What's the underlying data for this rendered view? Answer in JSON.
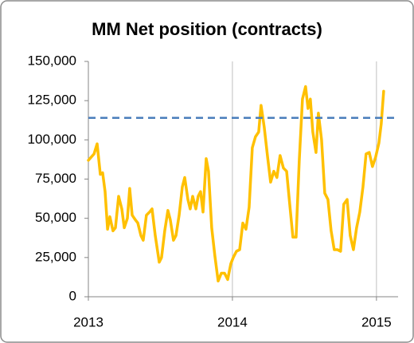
{
  "chart_data": {
    "type": "line",
    "title": "MM Net position (contracts)",
    "x": [
      2013.0,
      2013.039,
      2013.061,
      2013.083,
      2013.099,
      2013.116,
      2013.133,
      2013.149,
      2013.171,
      2013.188,
      2013.21,
      2013.232,
      2013.249,
      2013.271,
      2013.287,
      2013.304,
      2013.326,
      2013.343,
      2013.365,
      2013.381,
      2013.403,
      2013.425,
      2013.442,
      2013.464,
      2013.492,
      2013.508,
      2013.53,
      2013.552,
      2013.569,
      2013.591,
      2013.608,
      2013.63,
      2013.652,
      2013.669,
      2013.691,
      2013.707,
      2013.724,
      2013.746,
      2013.762,
      2013.779,
      2013.796,
      2013.818,
      2013.834,
      2013.856,
      2013.878,
      2013.901,
      2013.923,
      2013.945,
      2013.967,
      2013.989,
      2014.006,
      2014.028,
      2014.05,
      2014.072,
      2014.094,
      2014.116,
      2014.138,
      2014.16,
      2014.182,
      2014.199,
      2014.221,
      2014.243,
      2014.265,
      2014.287,
      2014.309,
      2014.331,
      2014.354,
      2014.376,
      2014.398,
      2014.42,
      2014.442,
      2014.464,
      2014.486,
      2014.508,
      2014.525,
      2014.541,
      2014.558,
      2014.58,
      2014.597,
      2014.619,
      2014.641,
      2014.663,
      2014.685,
      2014.707,
      2014.729,
      2014.751,
      2014.773,
      2014.796,
      2014.818,
      2014.84,
      2014.862,
      2014.884,
      2014.906,
      2014.928,
      2014.95,
      2014.972,
      2014.994,
      2015.017,
      2015.033,
      2015.05
    ],
    "series": [
      {
        "color": "#ffc000",
        "values": [
          87000,
          91000,
          97500,
          78000,
          79000,
          67000,
          43000,
          51000,
          42000,
          44000,
          64000,
          56000,
          44000,
          50000,
          69000,
          52000,
          49000,
          47000,
          39000,
          36000,
          52000,
          54000,
          56000,
          39000,
          22000,
          25000,
          42000,
          55000,
          49000,
          36000,
          39000,
          52000,
          70000,
          76000,
          62000,
          56000,
          64000,
          56000,
          64000,
          67000,
          54000,
          88000,
          80000,
          44000,
          26000,
          10000,
          15000,
          15000,
          11000,
          21000,
          25000,
          29000,
          30000,
          47000,
          43000,
          57000,
          95000,
          102000,
          105000,
          122000,
          108000,
          90000,
          73000,
          80000,
          76000,
          90000,
          82000,
          80000,
          59000,
          38000,
          38000,
          87000,
          126000,
          134000,
          120000,
          126000,
          105000,
          92000,
          117000,
          100000,
          66000,
          62000,
          42000,
          30000,
          30000,
          29000,
          59000,
          62000,
          39000,
          30000,
          44000,
          54000,
          70000,
          91000,
          92000,
          83000,
          89000,
          98000,
          110000,
          131000
        ]
      }
    ],
    "reference_line": {
      "value": 114000,
      "color": "#4a7ebb"
    },
    "xlim": [
      2013,
      2015.15
    ],
    "xticks": [
      2013,
      2014,
      2015
    ],
    "ylim": [
      0,
      150000
    ],
    "yticks": [
      0,
      {
        "value": 25000,
        "label": "25,000"
      },
      {
        "value": 50000,
        "label": "50,000"
      },
      {
        "value": 75000,
        "label": "75,000"
      },
      {
        "value": 100000,
        "label": "100,000"
      },
      {
        "value": 125000,
        "label": "125,000"
      },
      {
        "value": 150000,
        "label": "150,000"
      }
    ],
    "grid": "x"
  }
}
